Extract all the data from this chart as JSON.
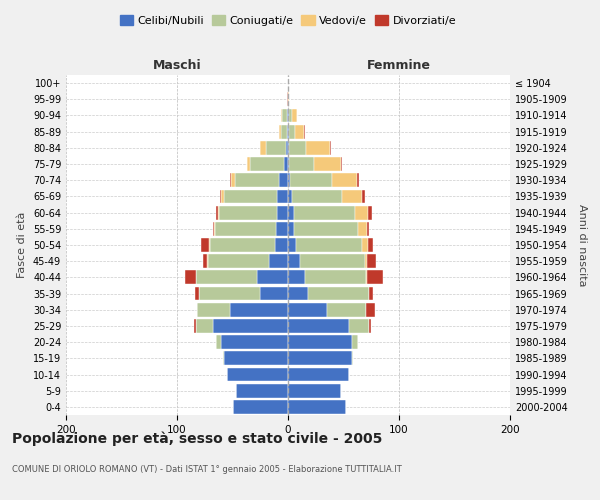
{
  "age_groups": [
    "0-4",
    "5-9",
    "10-14",
    "15-19",
    "20-24",
    "25-29",
    "30-34",
    "35-39",
    "40-44",
    "45-49",
    "50-54",
    "55-59",
    "60-64",
    "65-69",
    "70-74",
    "75-79",
    "80-84",
    "85-89",
    "90-94",
    "95-99",
    "100+"
  ],
  "birth_years": [
    "2000-2004",
    "1995-1999",
    "1990-1994",
    "1985-1989",
    "1980-1984",
    "1975-1979",
    "1970-1974",
    "1965-1969",
    "1960-1964",
    "1955-1959",
    "1950-1954",
    "1945-1949",
    "1940-1944",
    "1935-1939",
    "1930-1934",
    "1925-1929",
    "1920-1924",
    "1915-1919",
    "1910-1914",
    "1905-1909",
    "≤ 1904"
  ],
  "maschi": {
    "celibi": [
      50,
      47,
      55,
      58,
      60,
      68,
      52,
      25,
      28,
      17,
      12,
      11,
      10,
      10,
      8,
      4,
      2,
      1,
      1,
      0,
      0
    ],
    "coniugati": [
      0,
      0,
      0,
      1,
      5,
      15,
      30,
      55,
      55,
      55,
      58,
      55,
      52,
      48,
      40,
      30,
      18,
      5,
      4,
      0,
      0
    ],
    "vedovi": [
      0,
      0,
      0,
      0,
      0,
      0,
      0,
      0,
      0,
      1,
      1,
      1,
      1,
      2,
      3,
      3,
      5,
      2,
      1,
      0,
      0
    ],
    "divorziati": [
      0,
      0,
      0,
      0,
      0,
      2,
      0,
      4,
      10,
      4,
      7,
      1,
      2,
      1,
      1,
      0,
      0,
      0,
      0,
      1,
      0
    ]
  },
  "femmine": {
    "nubili": [
      52,
      48,
      55,
      58,
      58,
      55,
      35,
      18,
      15,
      11,
      7,
      5,
      5,
      4,
      2,
      1,
      1,
      1,
      1,
      0,
      0
    ],
    "coniugate": [
      0,
      0,
      0,
      1,
      5,
      18,
      35,
      55,
      55,
      58,
      60,
      58,
      55,
      45,
      38,
      22,
      15,
      5,
      3,
      0,
      0
    ],
    "vedove": [
      0,
      0,
      0,
      0,
      0,
      0,
      0,
      0,
      1,
      2,
      5,
      8,
      12,
      18,
      22,
      25,
      22,
      8,
      4,
      1,
      0
    ],
    "divorziate": [
      0,
      0,
      0,
      0,
      0,
      2,
      8,
      4,
      15,
      8,
      5,
      2,
      4,
      2,
      2,
      1,
      1,
      1,
      0,
      0,
      0
    ]
  },
  "color_celibi": "#4472c4",
  "color_coniugati": "#b7c99a",
  "color_vedovi": "#f5c97a",
  "color_divorziati": "#c0392b",
  "xlim": 200,
  "title": "Popolazione per età, sesso e stato civile - 2005",
  "subtitle": "COMUNE DI ORIOLO ROMANO (VT) - Dati ISTAT 1° gennaio 2005 - Elaborazione TUTTITALIA.IT",
  "ylabel_left": "Fasce di età",
  "ylabel_right": "Anni di nascita",
  "xlabel_left": "Maschi",
  "xlabel_right": "Femmine",
  "bg_color": "#f0f0f0",
  "plot_bg": "#ffffff"
}
